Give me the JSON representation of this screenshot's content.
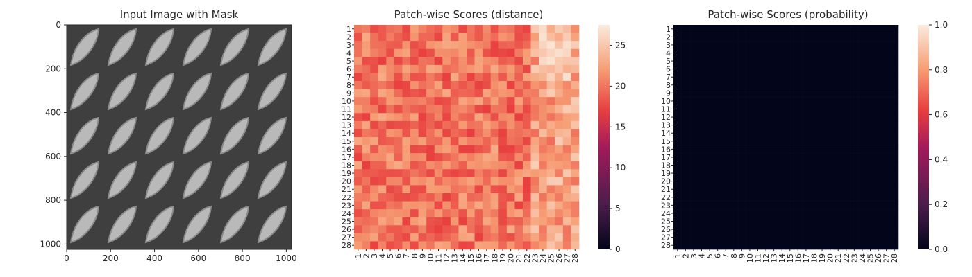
{
  "chart_data": [
    {
      "type": "image",
      "title": "Input Image with Mask",
      "xlim": [
        0,
        1024
      ],
      "ylim": [
        1024,
        0
      ],
      "xticks": [
        "0",
        "200",
        "400",
        "600",
        "800",
        "1000"
      ],
      "yticks": [
        "0",
        "200",
        "400",
        "600",
        "800",
        "1000"
      ],
      "description_colormap": "grayscale"
    },
    {
      "type": "heatmap",
      "title": "Patch-wise Scores (distance)",
      "rows": [
        "1",
        "2",
        "3",
        "4",
        "5",
        "6",
        "7",
        "8",
        "9",
        "10",
        "11",
        "12",
        "13",
        "14",
        "15",
        "16",
        "17",
        "18",
        "19",
        "20",
        "21",
        "22",
        "23",
        "24",
        "25",
        "26",
        "27",
        "28"
      ],
      "cols": [
        "1",
        "2",
        "3",
        "4",
        "5",
        "6",
        "7",
        "8",
        "9",
        "10",
        "11",
        "12",
        "13",
        "14",
        "15",
        "16",
        "17",
        "18",
        "19",
        "20",
        "21",
        "22",
        "23",
        "24",
        "25",
        "26",
        "27",
        "28"
      ],
      "colorbar": {
        "min": 0,
        "max": 27.5,
        "ticks": [
          "0",
          "5",
          "10",
          "15",
          "20",
          "25"
        ]
      },
      "value_range": [
        14,
        27
      ],
      "hot_region": {
        "rows": [
          1,
          7
        ],
        "cols": [
          24,
          27
        ],
        "value": 27
      }
    },
    {
      "type": "heatmap",
      "title": "Patch-wise Scores (probability)",
      "rows": [
        "1",
        "2",
        "3",
        "4",
        "5",
        "6",
        "7",
        "8",
        "9",
        "10",
        "11",
        "12",
        "13",
        "14",
        "15",
        "16",
        "17",
        "18",
        "19",
        "20",
        "21",
        "22",
        "23",
        "24",
        "25",
        "26",
        "27",
        "28"
      ],
      "cols": [
        "1",
        "2",
        "3",
        "4",
        "5",
        "6",
        "7",
        "8",
        "9",
        "10",
        "11",
        "12",
        "13",
        "14",
        "15",
        "16",
        "17",
        "18",
        "19",
        "20",
        "21",
        "22",
        "23",
        "24",
        "25",
        "26",
        "27",
        "28"
      ],
      "colorbar": {
        "min": 0.0,
        "max": 1.0,
        "ticks": [
          "0.0",
          "0.2",
          "0.4",
          "0.6",
          "0.8",
          "1.0"
        ]
      },
      "value_range": [
        0.0,
        0.01
      ]
    }
  ]
}
